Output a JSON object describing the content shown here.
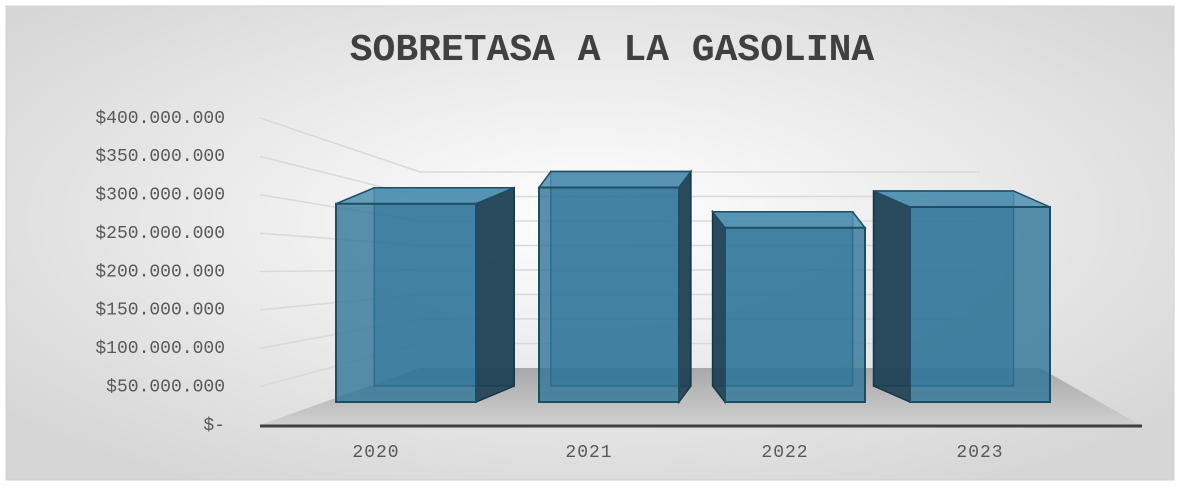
{
  "chart_data": {
    "type": "bar3d",
    "title": "SOBRETASA A LA GASOLINA",
    "categories": [
      "2020",
      "2021",
      "2022",
      "2023"
    ],
    "values": [
      305000000,
      330000000,
      268000000,
      300000000
    ],
    "color": "#2f7598",
    "ylim": [
      0,
      400000000
    ],
    "yticks": [
      {
        "value": 0,
        "label": "$-"
      },
      {
        "value": 50000000,
        "label": "$50.000.000"
      },
      {
        "value": 100000000,
        "label": "$100.000.000"
      },
      {
        "value": 150000000,
        "label": "$150.000.000"
      },
      {
        "value": 200000000,
        "label": "$200.000.000"
      },
      {
        "value": 250000000,
        "label": "$250.000.000"
      },
      {
        "value": 300000000,
        "label": "$300.000.000"
      },
      {
        "value": 350000000,
        "label": "$350.000.000"
      },
      {
        "value": 400000000,
        "label": "$400.000.000"
      }
    ],
    "grid": true
  }
}
